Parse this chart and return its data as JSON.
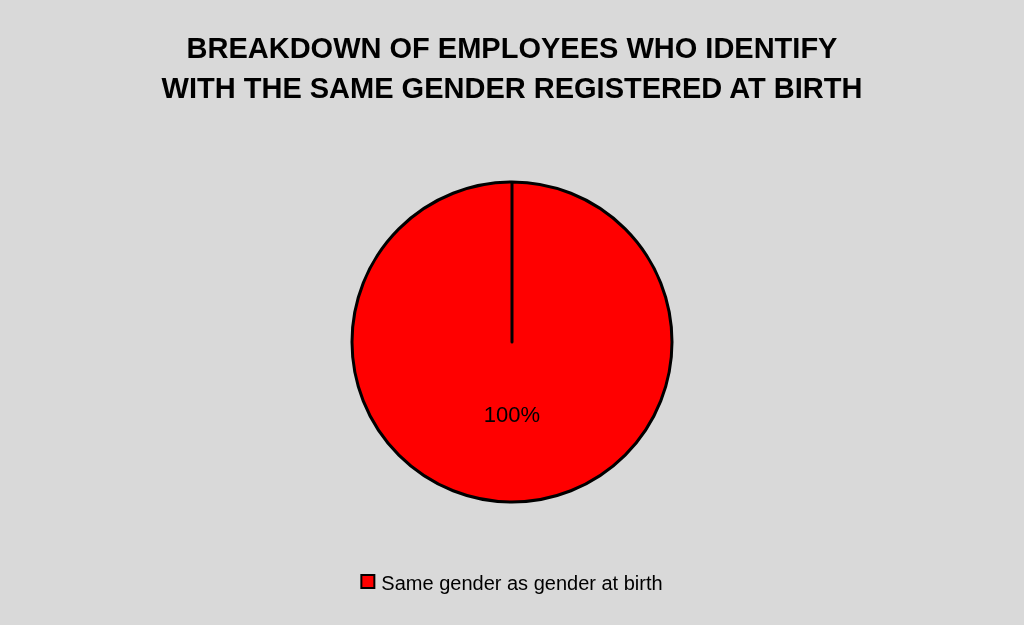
{
  "chart_data": {
    "type": "pie",
    "title": "BREAKDOWN OF EMPLOYEES WHO IDENTIFY WITH THE SAME GENDER REGISTERED AT BIRTH",
    "categories": [
      "Same gender as gender at birth"
    ],
    "values": [
      100
    ],
    "colors": [
      "#ff0000"
    ],
    "value_labels": [
      "100%"
    ],
    "legend": "bottom"
  }
}
